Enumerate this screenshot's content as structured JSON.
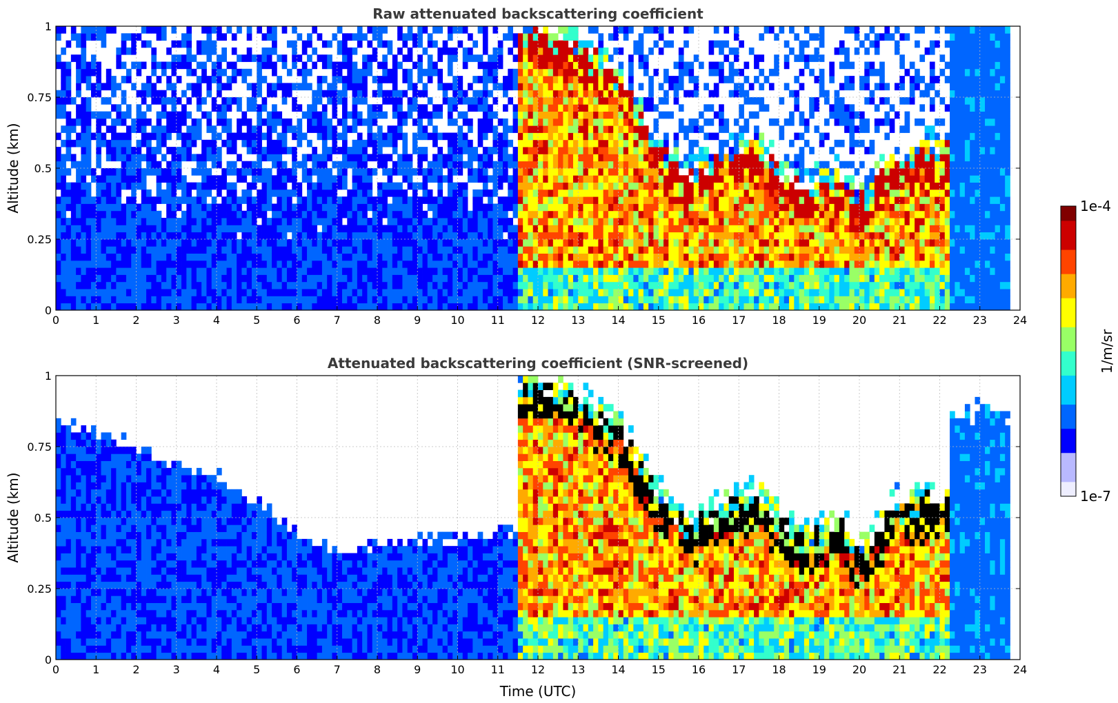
{
  "colors": {
    "background_clear": "#ffffff",
    "colormap": [
      "#eeeeff",
      "#b9b9ff",
      "#0000ff",
      "#0066ff",
      "#00ccff",
      "#33ffcc",
      "#99ff66",
      "#ffff00",
      "#ffaa00",
      "#ff4400",
      "#cc0000",
      "#800000"
    ],
    "saturated": "#000000"
  },
  "chart_data": [
    {
      "type": "heatmap",
      "title": "Raw attenuated backscattering coefficient",
      "ylabel": "Altitude (km)",
      "xlabel": "",
      "xlim": [
        0,
        24
      ],
      "ylim": [
        0,
        1
      ],
      "xticks": [
        "0",
        "1",
        "2",
        "3",
        "4",
        "5",
        "6",
        "7",
        "8",
        "9",
        "10",
        "11",
        "12",
        "13",
        "14",
        "15",
        "16",
        "17",
        "18",
        "19",
        "20",
        "21",
        "22",
        "23",
        "24"
      ],
      "yticks": [
        "0",
        "0.25",
        "0.5",
        "0.75",
        "1"
      ],
      "grid": true,
      "data_end_time": 23.75,
      "cloud_layer_top_km": [
        1.0,
        0.95,
        0.85,
        0.6,
        0.5,
        0.55,
        0.6,
        0.45,
        0.5,
        0.4,
        0.55,
        0.6
      ],
      "cloud_layer_times": [
        12,
        13,
        14,
        15,
        15.7,
        16.5,
        17.5,
        18.5,
        19.5,
        20,
        20.8,
        22
      ]
    },
    {
      "type": "heatmap",
      "title": "Attenuated backscattering coefficient (SNR-screened)",
      "ylabel": "Altitude (km)",
      "xlabel": "Time (UTC)",
      "xlim": [
        0,
        24
      ],
      "ylim": [
        0,
        1
      ],
      "xticks": [
        "0",
        "1",
        "2",
        "3",
        "4",
        "5",
        "6",
        "7",
        "8",
        "9",
        "10",
        "11",
        "12",
        "13",
        "14",
        "15",
        "16",
        "17",
        "18",
        "19",
        "20",
        "21",
        "22",
        "23",
        "24"
      ],
      "yticks": [
        "0",
        "0.25",
        "0.5",
        "0.75",
        "1"
      ],
      "grid": true,
      "data_end_time": 23.75,
      "boundary_layer_top_km": [
        0.85,
        0.8,
        0.75,
        0.7,
        0.65,
        0.55,
        0.45,
        0.38,
        0.4,
        0.42,
        0.42,
        0.45
      ],
      "boundary_layer_times": [
        0,
        1,
        2,
        3,
        4,
        5,
        6,
        7,
        8,
        9,
        10,
        11.3
      ]
    }
  ],
  "colorbar": {
    "label": "1/m/sr",
    "max_label": "1e-4",
    "min_label": "1e-7",
    "max_value": 0.0001,
    "min_value": 1e-07,
    "scale": "log"
  }
}
